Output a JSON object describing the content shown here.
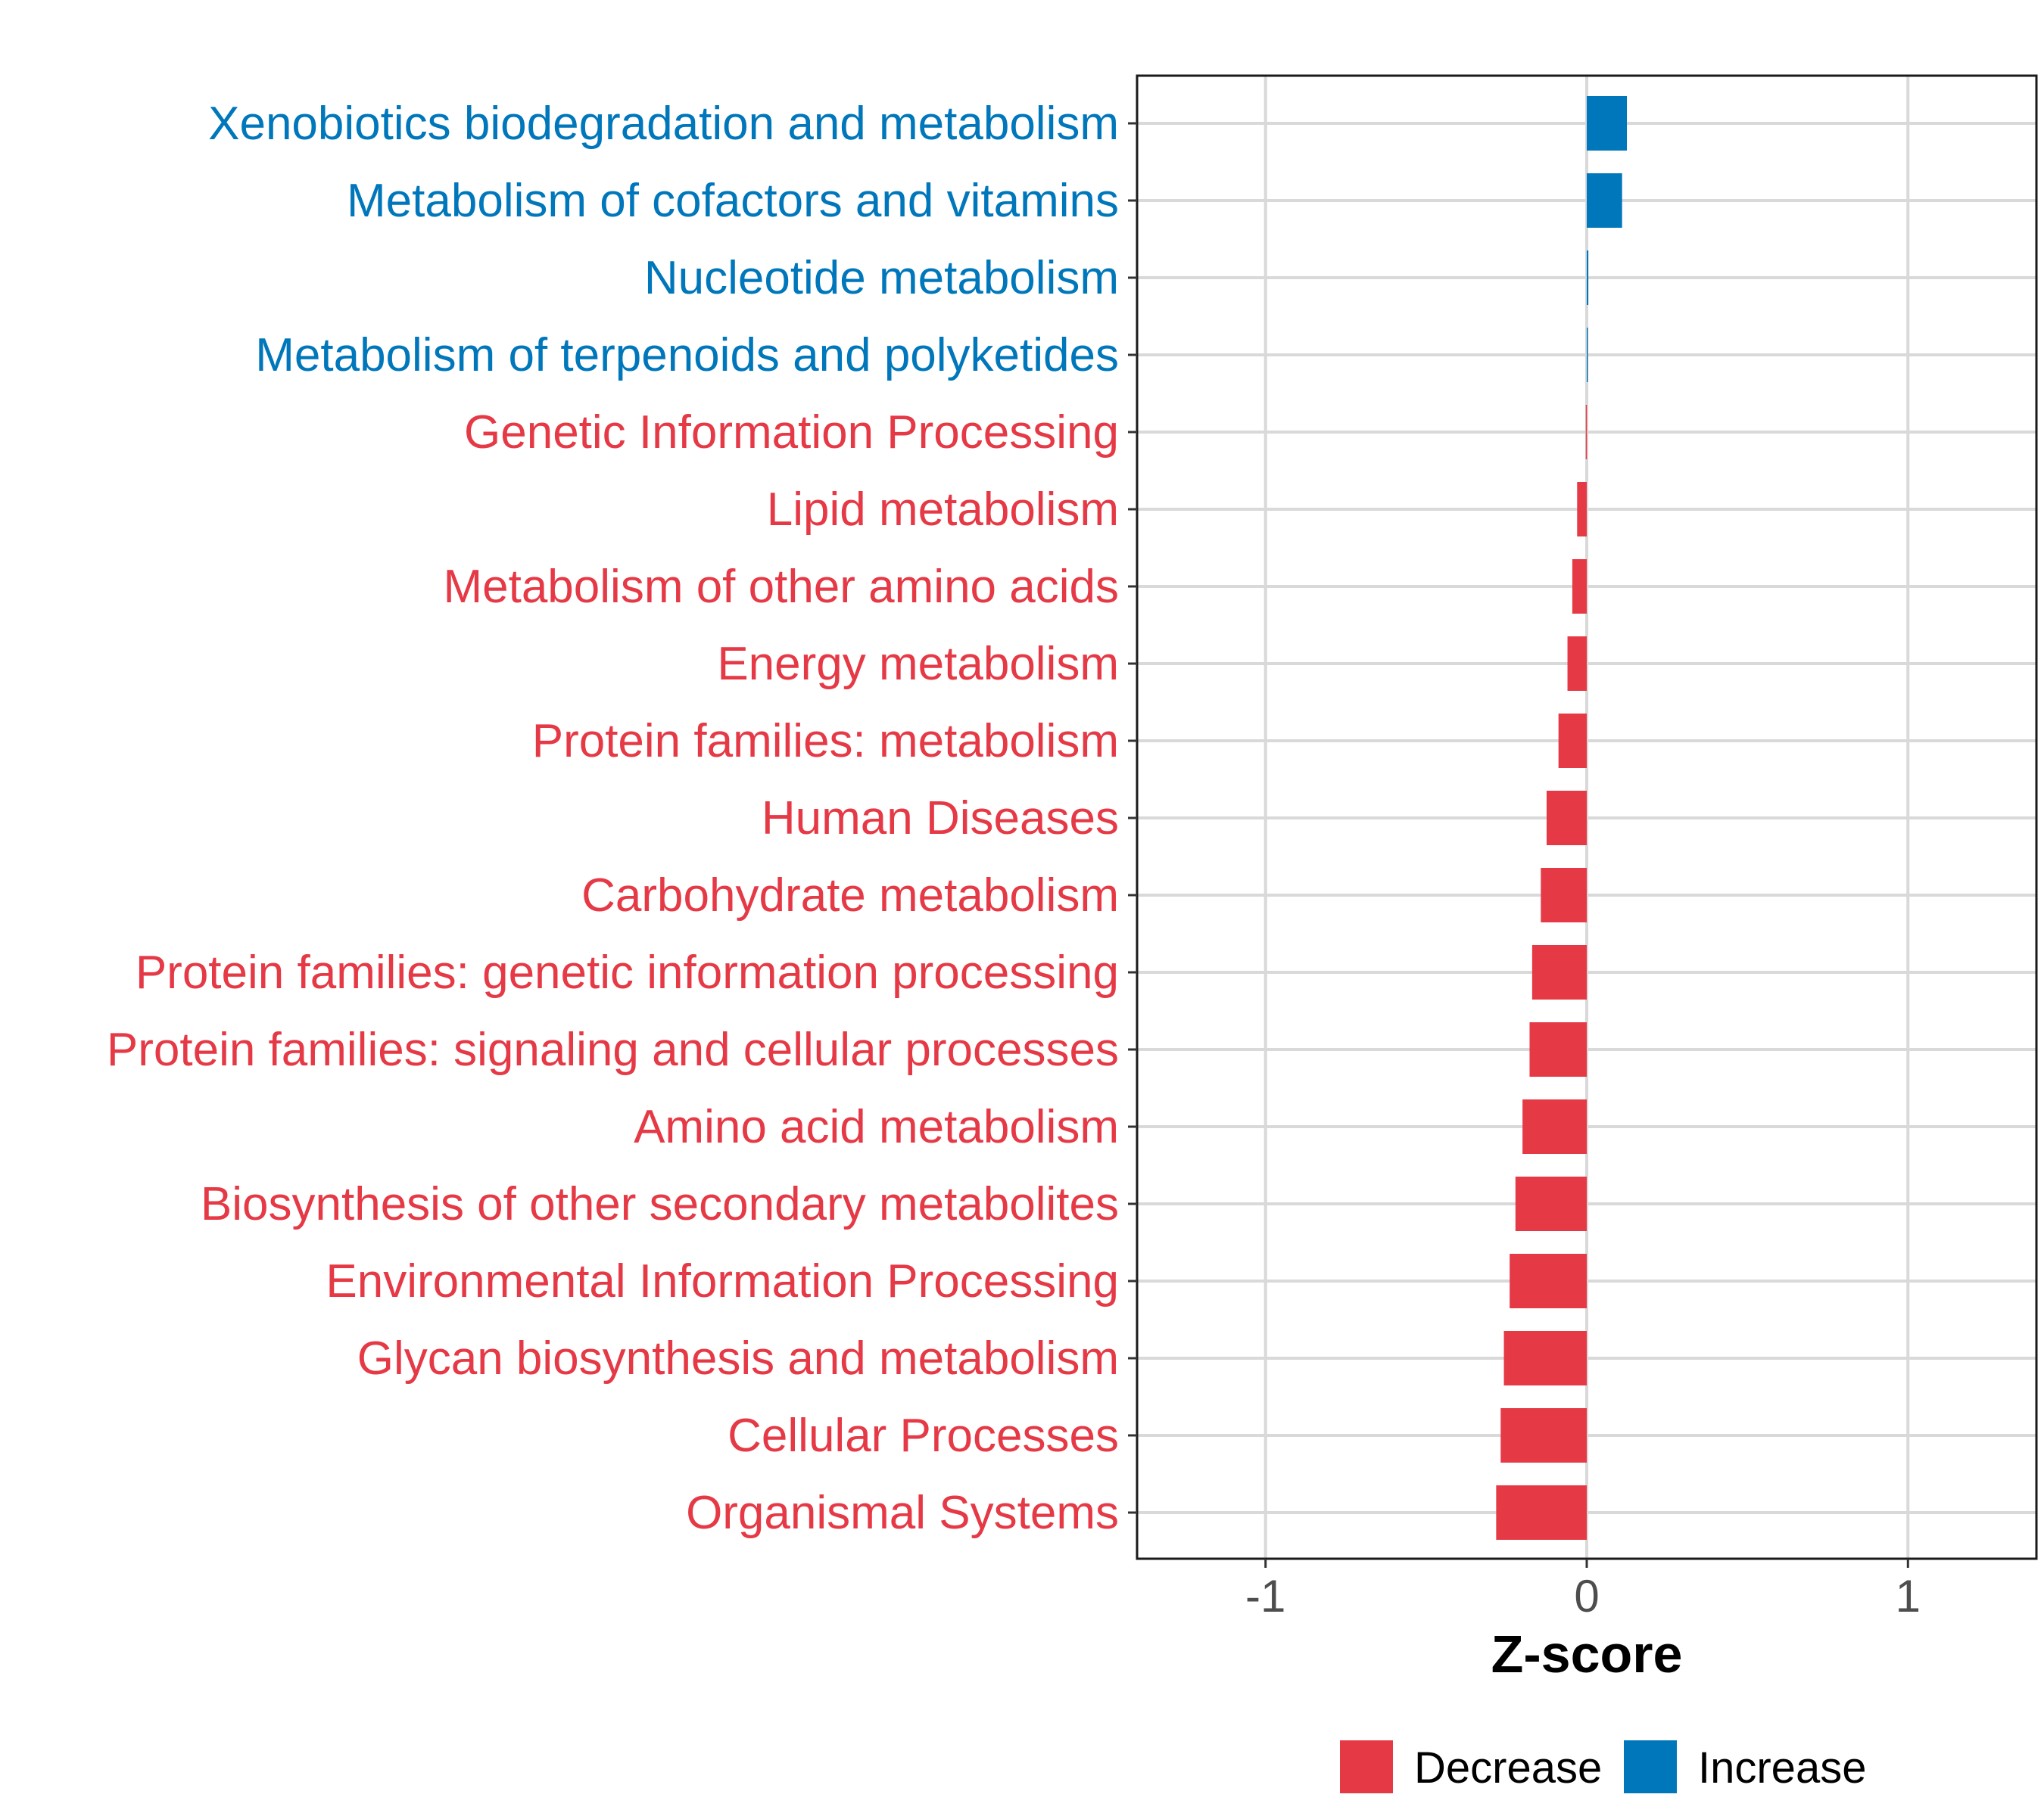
{
  "chart_data": {
    "type": "bar",
    "orientation": "horizontal",
    "title": "",
    "xlabel": "Z-score",
    "ylabel": "",
    "xlim": [
      -1.4,
      1.4
    ],
    "x_ticks": [
      -1,
      0,
      1
    ],
    "x_tick_labels": [
      "-1",
      "0",
      "1"
    ],
    "grid": true,
    "legend_position": "bottom",
    "categories": [
      "Xenobiotics biodegradation and metabolism",
      "Metabolism of cofactors and vitamins",
      "Nucleotide metabolism",
      "Metabolism of terpenoids and polyketides",
      "Genetic Information Processing",
      "Lipid metabolism",
      "Metabolism of other amino acids",
      "Energy metabolism",
      "Protein families: metabolism",
      "Human Diseases",
      "Carbohydrate metabolism",
      "Protein families: genetic information processing",
      "Protein families: signaling and cellular processes",
      "Amino acid metabolism",
      "Biosynthesis of other secondary metabolites",
      "Environmental Information Processing",
      "Glycan biosynthesis and metabolism",
      "Cellular Processes",
      "Organismal Systems"
    ],
    "values": [
      0.125,
      0.11,
      0.005,
      0.002,
      -0.003,
      -0.03,
      -0.045,
      -0.06,
      -0.088,
      -0.125,
      -0.143,
      -0.17,
      -0.178,
      -0.2,
      -0.222,
      -0.24,
      -0.258,
      -0.268,
      -0.282
    ],
    "groups": [
      "Increase",
      "Increase",
      "Increase",
      "Increase",
      "Decrease",
      "Decrease",
      "Decrease",
      "Decrease",
      "Decrease",
      "Decrease",
      "Decrease",
      "Decrease",
      "Decrease",
      "Decrease",
      "Decrease",
      "Decrease",
      "Decrease",
      "Decrease",
      "Decrease"
    ],
    "legend": [
      {
        "name": "Decrease",
        "color": "#e63946"
      },
      {
        "name": "Increase",
        "color": "#0077bb"
      }
    ]
  }
}
